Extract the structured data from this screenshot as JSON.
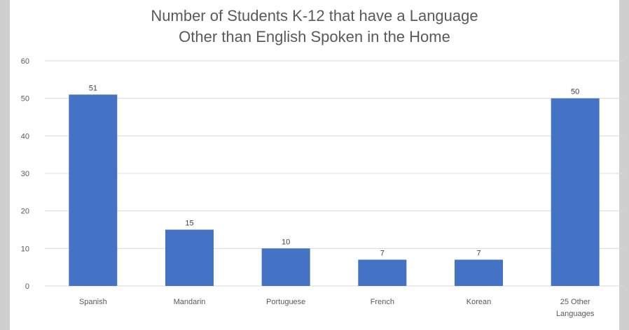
{
  "chart_data": {
    "type": "bar",
    "title_lines": [
      "Number of Students K-12 that have a Language",
      "Other than English Spoken in the Home"
    ],
    "categories": [
      [
        "Spanish"
      ],
      [
        "Mandarin"
      ],
      [
        "Portuguese"
      ],
      [
        "French"
      ],
      [
        "Korean"
      ],
      [
        "25 Other",
        "Languages"
      ]
    ],
    "values": [
      51,
      15,
      10,
      7,
      7,
      50
    ],
    "ylim": [
      0,
      60
    ],
    "yticks": [
      0,
      10,
      20,
      30,
      40,
      50,
      60
    ],
    "grid": true,
    "legend": "none",
    "bar_color": "#4472c4",
    "grid_color": "#d9d9d9",
    "axis_color": "#d9d9d9"
  }
}
